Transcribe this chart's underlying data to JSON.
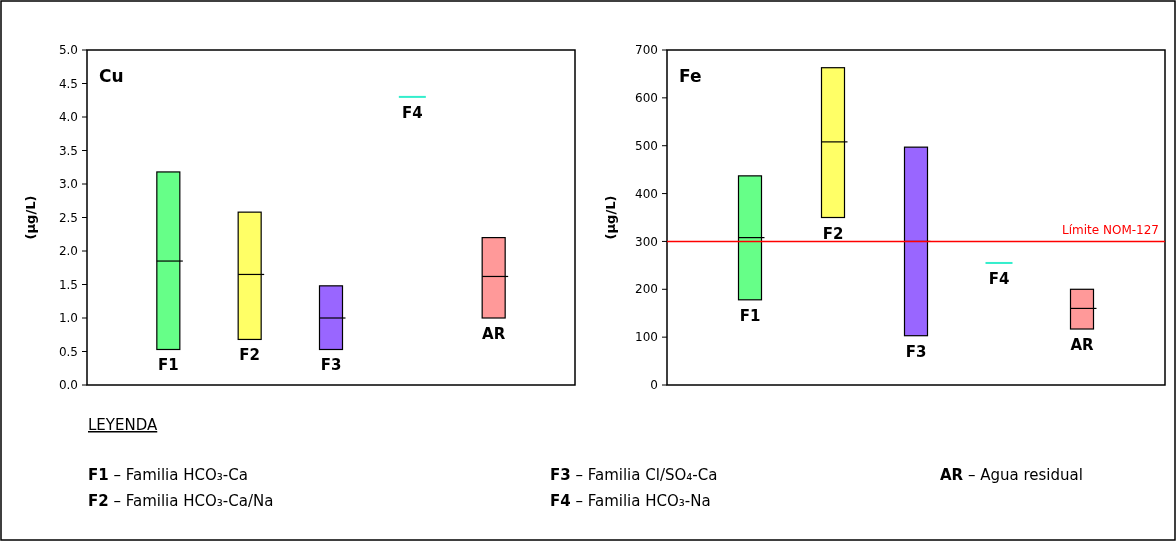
{
  "chart_data": [
    {
      "type": "box",
      "title": "Cu",
      "ylabel": "(µg/L)",
      "categories": [
        "F1",
        "F2",
        "F3",
        "F4",
        "AR"
      ],
      "colors": [
        "#66ff88",
        "#ffff66",
        "#9966ff",
        "#33eecc",
        "#ff9999"
      ],
      "boxes": [
        {
          "low": 0.53,
          "q1": 0.53,
          "median": 1.85,
          "q3": 3.18,
          "high": 3.18
        },
        {
          "low": 0.68,
          "q1": 0.68,
          "median": 1.65,
          "q3": 2.58,
          "high": 2.58
        },
        {
          "low": 0.53,
          "q1": 0.53,
          "median": 1.0,
          "q3": 1.48,
          "high": 1.48
        },
        {
          "low": 4.3,
          "q1": 4.3,
          "median": 4.3,
          "q3": 4.3,
          "high": 4.3
        },
        {
          "low": 1.0,
          "q1": 1.0,
          "median": 1.62,
          "q3": 2.2,
          "high": 2.2
        }
      ],
      "ylim": [
        0,
        5
      ],
      "yticks": [
        {
          "value": 0,
          "label": "0.0"
        },
        {
          "value": 0.5,
          "label": "0.5"
        },
        {
          "value": 1,
          "label": "1.0"
        },
        {
          "value": 1.5,
          "label": "1.5"
        },
        {
          "value": 2,
          "label": "2.0"
        },
        {
          "value": 2.5,
          "label": "2.5"
        },
        {
          "value": 3,
          "label": "3.0"
        },
        {
          "value": 3.5,
          "label": "3.5"
        },
        {
          "value": 4,
          "label": "4.0"
        },
        {
          "value": 4.5,
          "label": "4.5"
        },
        {
          "value": 5,
          "label": "5.0"
        }
      ],
      "annotations": [
        "LEYENDA",
        "F1 – Familia HCO₃-Ca",
        "F2 – Familia HCO₃-Ca/Na",
        "F3 – Familia Cl/SO₄-Ca",
        "F4 – Familia HCO₃-Na",
        "AR – Agua residual"
      ]
    },
    {
      "type": "box",
      "title": "Fe",
      "ylabel": "(µg/L)",
      "categories": [
        "F1",
        "F2",
        "F3",
        "F4",
        "AR"
      ],
      "colors": [
        "#66ff88",
        "#ffff66",
        "#9966ff",
        "#33eecc",
        "#ff9999"
      ],
      "boxes": [
        {
          "low": 178,
          "q1": 178,
          "median": 308,
          "q3": 437,
          "high": 437
        },
        {
          "low": 350,
          "q1": 350,
          "median": 508,
          "q3": 663,
          "high": 663
        },
        {
          "low": 103,
          "q1": 103,
          "median": 300,
          "q3": 497,
          "high": 497
        },
        {
          "low": 255,
          "q1": 255,
          "median": 255,
          "q3": 255,
          "high": 255
        },
        {
          "low": 117,
          "q1": 117,
          "median": 160,
          "q3": 200,
          "high": 200
        }
      ],
      "ylim": [
        0,
        700
      ],
      "yticks": [
        0,
        100,
        200,
        300,
        400,
        500,
        600,
        700
      ],
      "ref_lines": [
        {
          "axis": "y",
          "value": 300,
          "label": "Límite NOM-127",
          "color": "#ff0000"
        }
      ]
    }
  ]
}
